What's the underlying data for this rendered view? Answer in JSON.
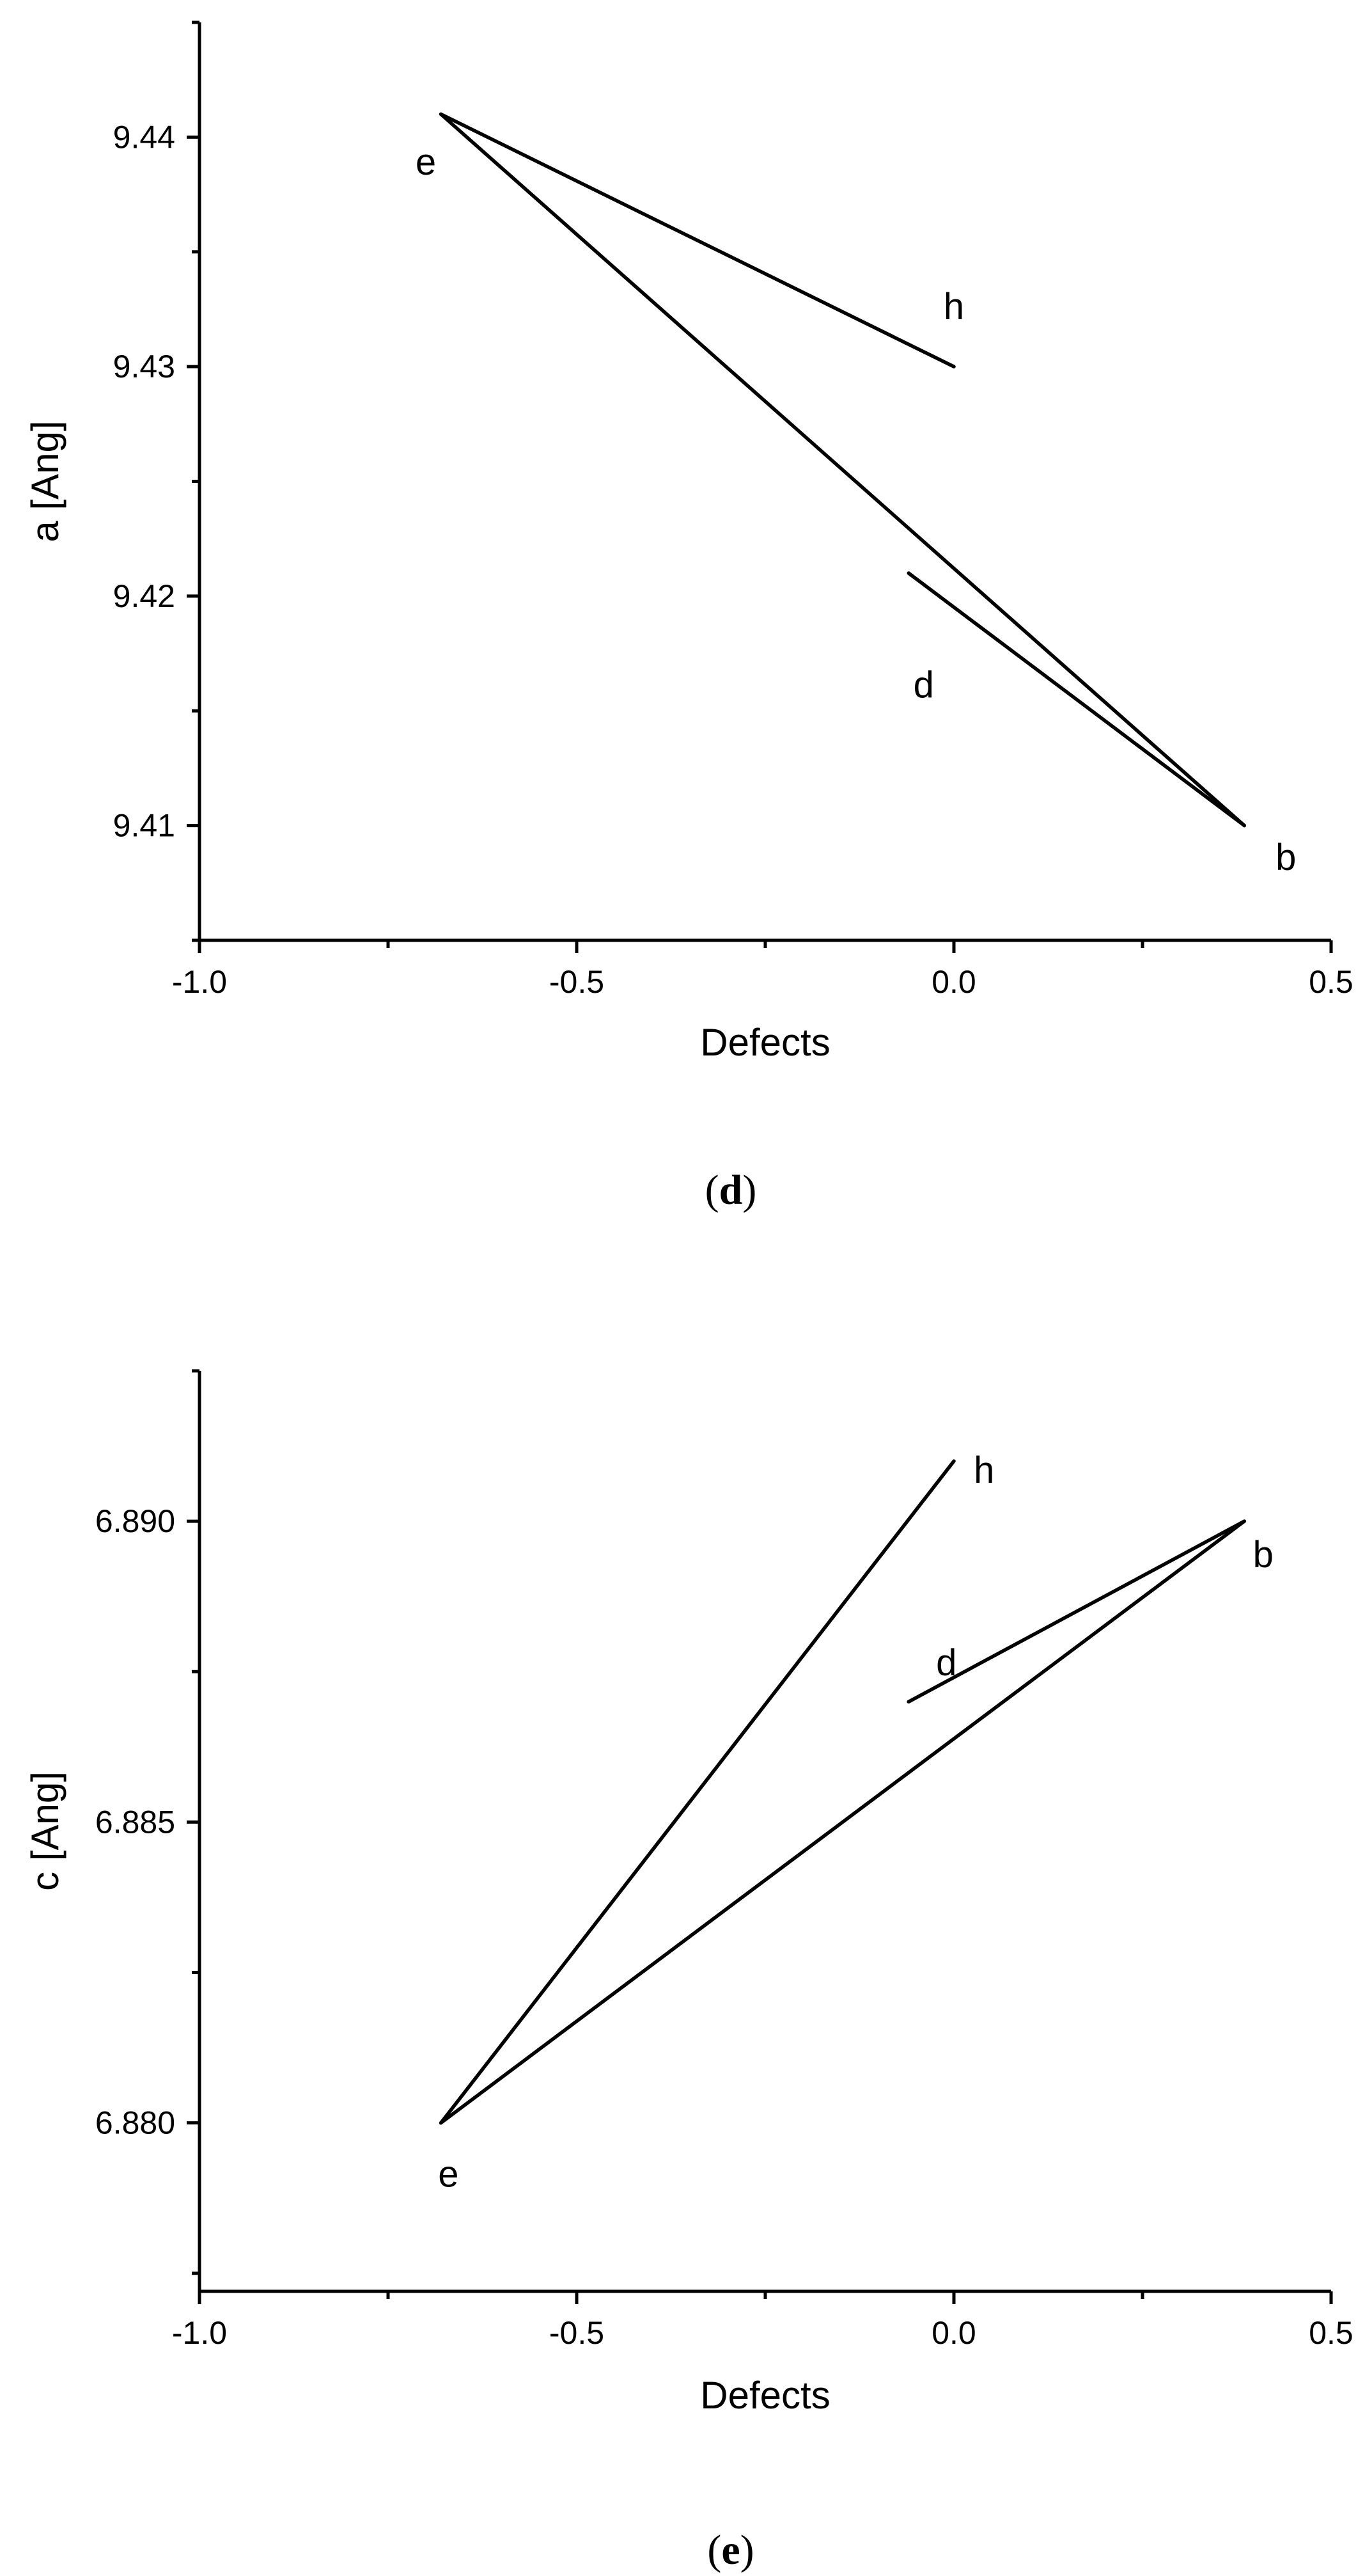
{
  "chart_data": [
    {
      "type": "line",
      "panel": "d",
      "xlabel": "Defects",
      "ylabel": "a [Ang]",
      "xlim": [
        -1.0,
        0.5
      ],
      "ylim": [
        9.405,
        9.445
      ],
      "x_ticks": [
        -1.0,
        -0.5,
        0.0,
        0.5
      ],
      "x_tick_labels": [
        "-1.0",
        "-0.5",
        "0.0",
        "0.5"
      ],
      "y_ticks": [
        9.41,
        9.42,
        9.43,
        9.44
      ],
      "y_tick_labels": [
        "9.41",
        "9.42",
        "9.43",
        "9.44"
      ],
      "grid": false,
      "legend": false,
      "series": [
        {
          "points": [
            [
              -0.68,
              9.441
            ],
            [
              0.0,
              9.43
            ]
          ]
        },
        {
          "points": [
            [
              -0.68,
              9.441
            ],
            [
              0.385,
              9.41
            ]
          ]
        },
        {
          "points": [
            [
              -0.06,
              9.421
            ],
            [
              0.385,
              9.41
            ]
          ]
        }
      ],
      "annotations": [
        {
          "text": "e",
          "x": -0.7,
          "y": 9.4388
        },
        {
          "text": "h",
          "x": 0.0,
          "y": 9.4325
        },
        {
          "text": "d",
          "x": -0.04,
          "y": 9.416
        },
        {
          "text": "b",
          "x": 0.44,
          "y": 9.4085
        }
      ]
    },
    {
      "type": "line",
      "panel": "e",
      "xlabel": "Defects",
      "ylabel": "c [Ang]",
      "xlim": [
        -1.0,
        0.5
      ],
      "ylim": [
        6.8772,
        6.8925
      ],
      "x_ticks": [
        -1.0,
        -0.5,
        0.0,
        0.5
      ],
      "x_tick_labels": [
        "-1.0",
        "-0.5",
        "0.0",
        "0.5"
      ],
      "y_ticks": [
        6.88,
        6.885,
        6.89
      ],
      "y_tick_labels": [
        "6.880",
        "6.885",
        "6.890"
      ],
      "grid": false,
      "legend": false,
      "series": [
        {
          "points": [
            [
              -0.68,
              6.88
            ],
            [
              0.0,
              6.891
            ]
          ]
        },
        {
          "points": [
            [
              -0.68,
              6.88
            ],
            [
              0.385,
              6.89
            ]
          ]
        },
        {
          "points": [
            [
              -0.06,
              6.887
            ],
            [
              0.385,
              6.89
            ]
          ]
        }
      ],
      "annotations": [
        {
          "text": "e",
          "x": -0.67,
          "y": 6.8791
        },
        {
          "text": "h",
          "x": 0.04,
          "y": 6.8908
        },
        {
          "text": "d",
          "x": -0.01,
          "y": 6.8876
        },
        {
          "text": "b",
          "x": 0.41,
          "y": 6.8894
        }
      ]
    }
  ],
  "captions": [
    {
      "open": "(",
      "letter": "d",
      "close": ")"
    },
    {
      "open": "(",
      "letter": "e",
      "close": ")"
    }
  ]
}
